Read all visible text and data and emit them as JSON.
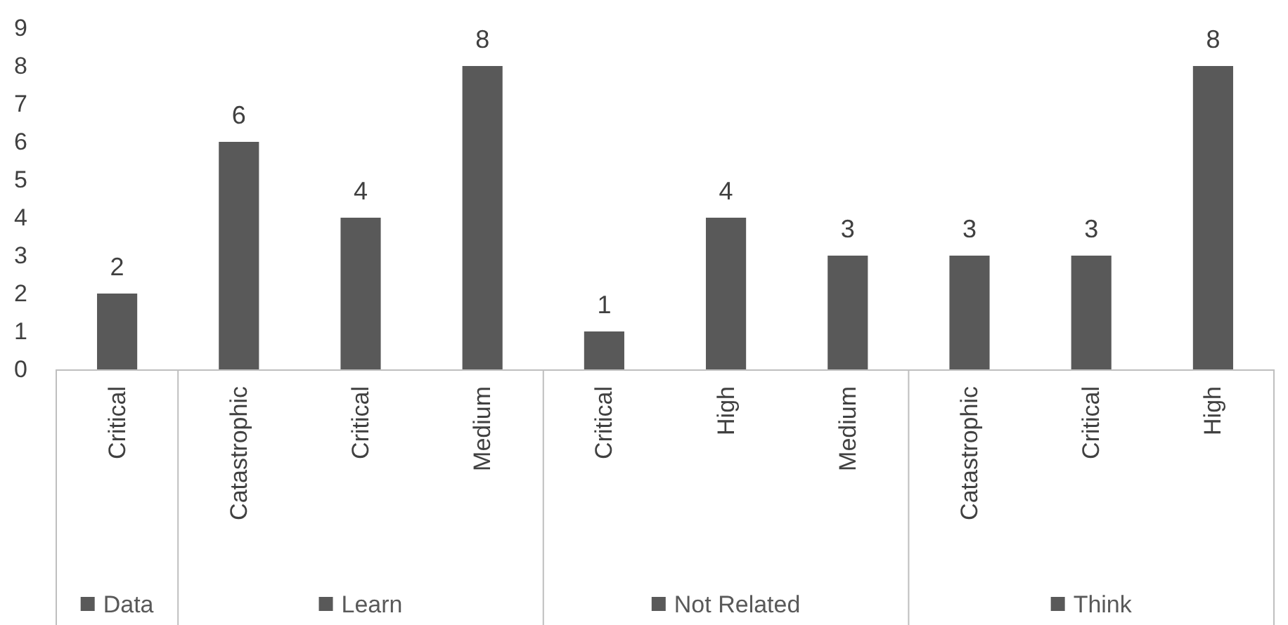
{
  "chart_data": {
    "type": "bar",
    "categories": [
      "Critical",
      "Catastrophic",
      "Critical",
      "Medium",
      "Critical",
      "High",
      "Medium",
      "Catastrophic",
      "Critical",
      "High"
    ],
    "series": [
      {
        "name": "Data",
        "color": "#595959",
        "values": [
          2,
          null,
          null,
          null,
          null,
          null,
          null,
          null,
          null,
          null
        ]
      },
      {
        "name": "Learn",
        "color": "#595959",
        "values": [
          null,
          6,
          4,
          8,
          null,
          null,
          null,
          null,
          null,
          null
        ]
      },
      {
        "name": "Not Related",
        "color": "#595959",
        "values": [
          null,
          null,
          null,
          null,
          1,
          4,
          3,
          null,
          null,
          null
        ]
      },
      {
        "name": "Think",
        "color": "#595959",
        "values": [
          null,
          null,
          null,
          null,
          null,
          null,
          null,
          3,
          3,
          8
        ]
      }
    ],
    "stacked": true,
    "ylim": [
      0,
      9
    ],
    "yticks": [
      0,
      1,
      2,
      3,
      4,
      5,
      6,
      7,
      8,
      9
    ],
    "grid": false,
    "legend": "bottom",
    "data_labels": true
  }
}
